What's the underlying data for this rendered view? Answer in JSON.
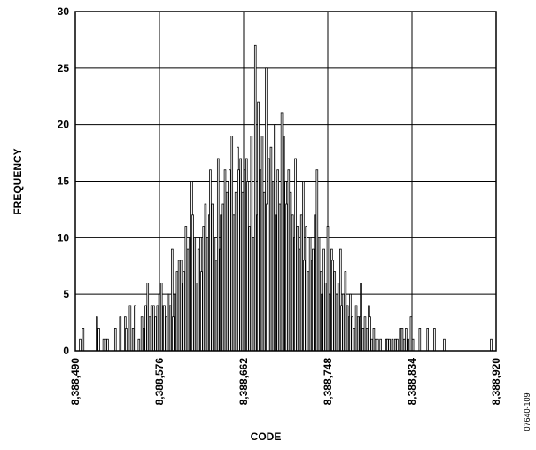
{
  "chart_data": {
    "type": "histogram",
    "xlabel": "CODE",
    "ylabel": "FREQUENCY",
    "figure_id": "07640-109",
    "xlim": [
      8388490,
      8388920
    ],
    "ylim": [
      0,
      30
    ],
    "xticks": [
      {
        "value": 8388490,
        "label": "8,388,490"
      },
      {
        "value": 8388576,
        "label": "8,388,576"
      },
      {
        "value": 8388662,
        "label": "8,388,662"
      },
      {
        "value": 8388748,
        "label": "8,388,748"
      },
      {
        "value": 8388834,
        "label": "8,388,834"
      },
      {
        "value": 8388920,
        "label": "8,388,920"
      }
    ],
    "yticks": [
      0,
      5,
      10,
      15,
      20,
      25,
      30
    ],
    "grid": true,
    "color": "#ffffff",
    "x": [
      8388495,
      8388498,
      8388512,
      8388514,
      8388519,
      8388521,
      8388523,
      8388531,
      8388536,
      8388541,
      8388542,
      8388546,
      8388549,
      8388551,
      8388555,
      8388558,
      8388560,
      8388562,
      8388564,
      8388566,
      8388568,
      8388570,
      8388572,
      8388574,
      8388576,
      8388578,
      8388580,
      8388581,
      8388583,
      8388585,
      8388587,
      8388589,
      8388590,
      8388592,
      8388594,
      8388596,
      8388598,
      8388600,
      8388601,
      8388603,
      8388605,
      8388607,
      8388609,
      8388610,
      8388612,
      8388614,
      8388616,
      8388618,
      8388619,
      8388621,
      8388623,
      8388625,
      8388627,
      8388628,
      8388630,
      8388632,
      8388634,
      8388636,
      8388638,
      8388639,
      8388641,
      8388643,
      8388645,
      8388647,
      8388648,
      8388650,
      8388652,
      8388654,
      8388656,
      8388657,
      8388659,
      8388661,
      8388663,
      8388665,
      8388666,
      8388668,
      8388670,
      8388672,
      8388674,
      8388676,
      8388677,
      8388679,
      8388681,
      8388683,
      8388685,
      8388686,
      8388688,
      8388690,
      8388692,
      8388694,
      8388695,
      8388697,
      8388699,
      8388701,
      8388703,
      8388705,
      8388706,
      8388708,
      8388710,
      8388712,
      8388714,
      8388715,
      8388717,
      8388719,
      8388721,
      8388723,
      8388724,
      8388726,
      8388728,
      8388730,
      8388732,
      8388733,
      8388735,
      8388737,
      8388739,
      8388741,
      8388742,
      8388744,
      8388746,
      8388748,
      8388750,
      8388752,
      8388753,
      8388755,
      8388757,
      8388759,
      8388761,
      8388762,
      8388764,
      8388766,
      8388768,
      8388770,
      8388771,
      8388773,
      8388775,
      8388777,
      8388779,
      8388781,
      8388782,
      8388784,
      8388786,
      8388788,
      8388790,
      8388791,
      8388793,
      8388795,
      8388797,
      8388799,
      8388802,
      8388808,
      8388809,
      8388811,
      8388814,
      8388817,
      8388819,
      8388822,
      8388824,
      8388826,
      8388828,
      8388830,
      8388833,
      8388835,
      8388842,
      8388850,
      8388857,
      8388867,
      8388915
    ],
    "values": [
      1,
      2,
      3,
      2,
      1,
      1,
      1,
      2,
      3,
      3,
      2,
      4,
      2,
      4,
      1,
      3,
      2,
      4,
      6,
      3,
      4,
      4,
      3,
      4,
      5,
      6,
      4,
      4,
      3,
      5,
      4,
      9,
      3,
      5,
      7,
      8,
      8,
      6,
      7,
      11,
      9,
      10,
      15,
      12,
      10,
      6,
      9,
      10,
      7,
      11,
      13,
      10,
      12,
      16,
      13,
      10,
      8,
      17,
      9,
      12,
      13,
      16,
      14,
      15,
      16,
      19,
      12,
      14,
      18,
      16,
      17,
      14,
      16,
      17,
      15,
      11,
      19,
      10,
      27,
      12,
      22,
      16,
      19,
      14,
      25,
      13,
      17,
      18,
      15,
      20,
      12,
      16,
      13,
      21,
      19,
      15,
      13,
      16,
      14,
      12,
      10,
      17,
      11,
      9,
      12,
      15,
      8,
      11,
      7,
      10,
      8,
      9,
      12,
      16,
      10,
      7,
      5,
      9,
      6,
      11,
      5,
      9,
      8,
      7,
      5,
      6,
      9,
      4,
      5,
      7,
      4,
      3,
      5,
      3,
      2,
      4,
      3,
      3,
      6,
      2,
      3,
      2,
      4,
      3,
      1,
      2,
      1,
      1,
      1,
      1,
      1,
      1,
      1,
      1,
      1,
      2,
      2,
      1,
      2,
      1,
      3,
      1,
      2,
      2,
      2,
      1,
      1
    ]
  }
}
